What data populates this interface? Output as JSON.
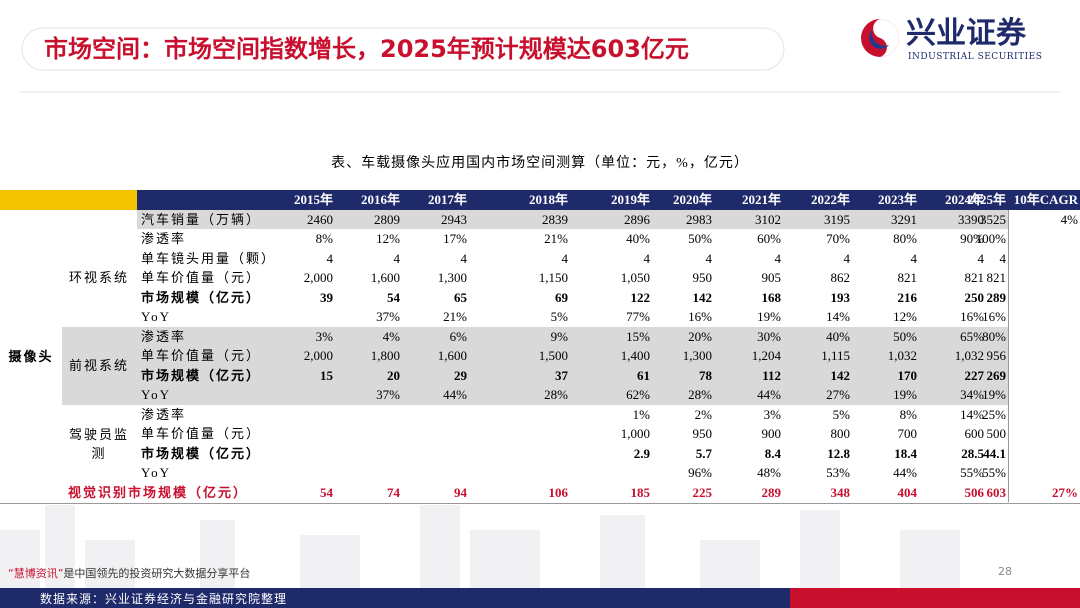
{
  "header": {
    "title": "市场空间：市场空间指数增长，2025年预计规模达603亿元",
    "logo_name": "兴业证券",
    "logo_sub": "INDUSTRIAL SECURITIES"
  },
  "table": {
    "caption": "表、车载摄像头应用国内市场空间测算（单位：元，%，亿元）",
    "columns": [
      "2015年",
      "2016年",
      "2017年",
      "2018年",
      "2019年",
      "2020年",
      "2021年",
      "2022年",
      "2023年",
      "2024年",
      "2025年",
      "10年CAGR"
    ],
    "top_row": {
      "label": "汽车销量（万辆）",
      "shaded": true,
      "cells": [
        "2460",
        "2809",
        "2943",
        "2839",
        "2896",
        "2983",
        "3102",
        "3195",
        "3291",
        "3390",
        "3525",
        "4%"
      ]
    },
    "group": {
      "label": "摄像头",
      "subgroups": [
        {
          "label": "环视系统",
          "shaded": false,
          "rows": [
            {
              "label": "渗透率",
              "cells": [
                "8%",
                "12%",
                "17%",
                "21%",
                "40%",
                "50%",
                "60%",
                "70%",
                "80%",
                "90%",
                "100%",
                null
              ]
            },
            {
              "label": "单车镜头用量（颗）",
              "cells": [
                "4",
                "4",
                "4",
                "4",
                "4",
                "4",
                "4",
                "4",
                "4",
                "4",
                "4",
                null
              ]
            },
            {
              "label": "单车价值量（元）",
              "cells": [
                "2,000",
                "1,600",
                "1,300",
                "1,150",
                "1,050",
                "950",
                "905",
                "862",
                "821",
                "821",
                "821",
                null
              ]
            },
            {
              "label": "市场规模（亿元）",
              "bold": true,
              "cells": [
                "39",
                "54",
                "65",
                "69",
                "122",
                "142",
                "168",
                "193",
                "216",
                "250",
                "289",
                null
              ]
            },
            {
              "label": "YoY",
              "cells": [
                null,
                "37%",
                "21%",
                "5%",
                "77%",
                "16%",
                "19%",
                "14%",
                "12%",
                "16%",
                "16%",
                null
              ]
            }
          ]
        },
        {
          "label": "前视系统",
          "shaded": true,
          "rows": [
            {
              "label": "渗透率",
              "cells": [
                "3%",
                "4%",
                "6%",
                "9%",
                "15%",
                "20%",
                "30%",
                "40%",
                "50%",
                "65%",
                "80%",
                null
              ]
            },
            {
              "label": "单车价值量（元）",
              "cells": [
                "2,000",
                "1,800",
                "1,600",
                "1,500",
                "1,400",
                "1,300",
                "1,204",
                "1,115",
                "1,032",
                "1,032",
                "956",
                null
              ]
            },
            {
              "label": "市场规模（亿元）",
              "bold": true,
              "cells": [
                "15",
                "20",
                "29",
                "37",
                "61",
                "78",
                "112",
                "142",
                "170",
                "227",
                "269",
                null
              ]
            },
            {
              "label": "YoY",
              "cells": [
                null,
                "37%",
                "44%",
                "28%",
                "62%",
                "28%",
                "44%",
                "27%",
                "19%",
                "34%",
                "19%",
                null
              ]
            }
          ]
        },
        {
          "label": "驾驶员监测",
          "shaded": false,
          "rows": [
            {
              "label": "渗透率",
              "cells": [
                null,
                null,
                null,
                null,
                "1%",
                "2%",
                "3%",
                "5%",
                "8%",
                "14%",
                "25%",
                null
              ]
            },
            {
              "label": "单车价值量（元）",
              "cells": [
                null,
                null,
                null,
                null,
                "1,000",
                "950",
                "900",
                "800",
                "700",
                "600",
                "500",
                null
              ]
            },
            {
              "label": "市场规模（亿元）",
              "bold": true,
              "cells": [
                null,
                null,
                null,
                null,
                "2.9",
                "5.7",
                "8.4",
                "12.8",
                "18.4",
                "28.5",
                "44.1",
                null
              ]
            },
            {
              "label": "YoY",
              "cells": [
                null,
                null,
                null,
                null,
                null,
                "96%",
                "48%",
                "53%",
                "44%",
                "55%",
                "55%",
                null
              ]
            }
          ]
        }
      ]
    },
    "total_row": {
      "label": "视觉识别市场规模（亿元）",
      "highlight": true,
      "cells": [
        "54",
        "74",
        "94",
        "106",
        "185",
        "225",
        "289",
        "348",
        "404",
        "506",
        "603",
        "27%"
      ]
    }
  },
  "footer": {
    "brand": "“慧博资讯”",
    "text": "是中国领先的投资研究大数据分享平台",
    "page": "28",
    "source": "数据来源：兴业证券经济与金融研究院整理"
  }
}
